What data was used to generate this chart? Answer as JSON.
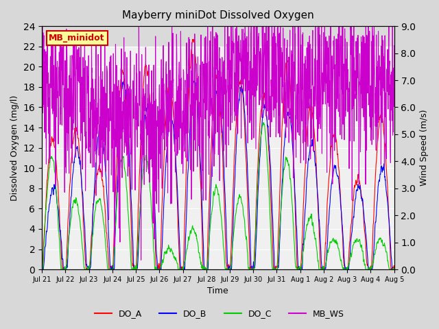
{
  "title": "Mayberry miniDot Dissolved Oxygen",
  "xlabel": "Time",
  "ylabel_left": "Dissolved Oxygen (mg/l)",
  "ylabel_right": "Wind Speed (m/s)",
  "ylim_left": [
    0,
    24
  ],
  "ylim_right": [
    0.0,
    9.0
  ],
  "yticks_left": [
    0,
    2,
    4,
    6,
    8,
    10,
    12,
    14,
    16,
    18,
    20,
    22,
    24
  ],
  "yticks_right": [
    0.0,
    1.0,
    2.0,
    3.0,
    4.0,
    5.0,
    6.0,
    7.0,
    8.0,
    9.0
  ],
  "fig_bg_color": "#d8d8d8",
  "plot_bg_color": "#f0f0f0",
  "legend_label": "MB_minidot",
  "legend_bg": "#ffff99",
  "legend_border": "#cc0000",
  "line_colors": {
    "DO_A": "#ff0000",
    "DO_B": "#0000ff",
    "DO_C": "#00cc00",
    "MB_WS": "#cc00cc"
  },
  "xtick_labels": [
    "Jul 21",
    "Jul 22",
    "Jul 23",
    "Jul 24",
    "Jul 25",
    "Jul 26",
    "Jul 27",
    "Jul 28",
    "Jul 29",
    "Jul 30",
    "Jul 31",
    "Aug 1",
    "Aug 2",
    "Aug 3",
    "Aug 4",
    "Aug 5"
  ],
  "xtick_positions": [
    0,
    1,
    2,
    3,
    4,
    5,
    6,
    7,
    8,
    9,
    10,
    11,
    12,
    13,
    14,
    15
  ],
  "n_days": 15,
  "seed": 42
}
